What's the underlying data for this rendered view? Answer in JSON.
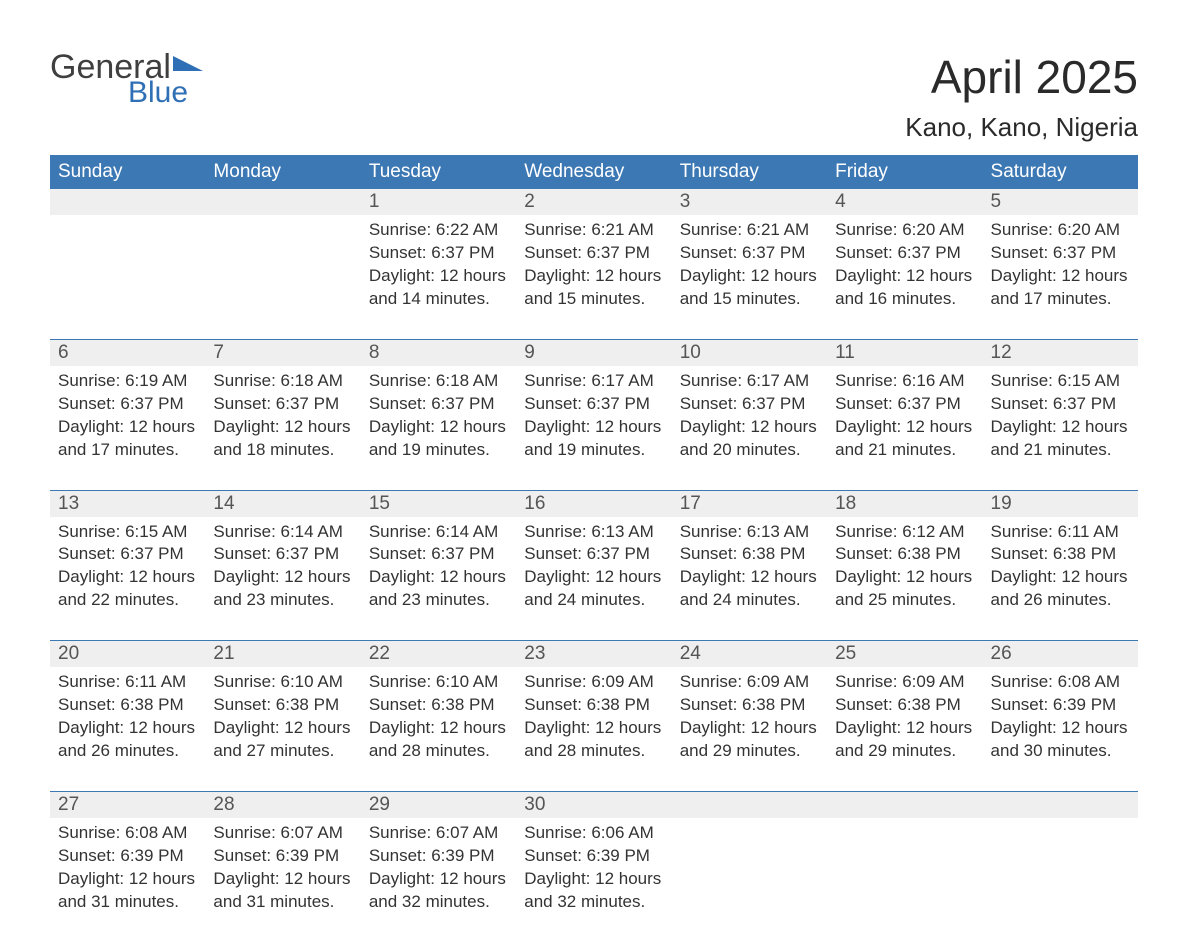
{
  "logo": {
    "word1": "General",
    "word2": "Blue"
  },
  "title": "April 2025",
  "location": "Kano, Kano, Nigeria",
  "colors": {
    "header_bg": "#3c78b4",
    "header_fg": "#ffffff",
    "daynum_bg": "#efefef",
    "week_border": "#3c78b4",
    "text": "#333333",
    "logo_gray": "#3f3f3f",
    "logo_blue": "#2f6fb5"
  },
  "day_headers": [
    "Sunday",
    "Monday",
    "Tuesday",
    "Wednesday",
    "Thursday",
    "Friday",
    "Saturday"
  ],
  "weeks": [
    [
      null,
      null,
      {
        "n": "1",
        "sr": "Sunrise: 6:22 AM",
        "ss": "Sunset: 6:37 PM",
        "d1": "Daylight: 12 hours",
        "d2": "and 14 minutes."
      },
      {
        "n": "2",
        "sr": "Sunrise: 6:21 AM",
        "ss": "Sunset: 6:37 PM",
        "d1": "Daylight: 12 hours",
        "d2": "and 15 minutes."
      },
      {
        "n": "3",
        "sr": "Sunrise: 6:21 AM",
        "ss": "Sunset: 6:37 PM",
        "d1": "Daylight: 12 hours",
        "d2": "and 15 minutes."
      },
      {
        "n": "4",
        "sr": "Sunrise: 6:20 AM",
        "ss": "Sunset: 6:37 PM",
        "d1": "Daylight: 12 hours",
        "d2": "and 16 minutes."
      },
      {
        "n": "5",
        "sr": "Sunrise: 6:20 AM",
        "ss": "Sunset: 6:37 PM",
        "d1": "Daylight: 12 hours",
        "d2": "and 17 minutes."
      }
    ],
    [
      {
        "n": "6",
        "sr": "Sunrise: 6:19 AM",
        "ss": "Sunset: 6:37 PM",
        "d1": "Daylight: 12 hours",
        "d2": "and 17 minutes."
      },
      {
        "n": "7",
        "sr": "Sunrise: 6:18 AM",
        "ss": "Sunset: 6:37 PM",
        "d1": "Daylight: 12 hours",
        "d2": "and 18 minutes."
      },
      {
        "n": "8",
        "sr": "Sunrise: 6:18 AM",
        "ss": "Sunset: 6:37 PM",
        "d1": "Daylight: 12 hours",
        "d2": "and 19 minutes."
      },
      {
        "n": "9",
        "sr": "Sunrise: 6:17 AM",
        "ss": "Sunset: 6:37 PM",
        "d1": "Daylight: 12 hours",
        "d2": "and 19 minutes."
      },
      {
        "n": "10",
        "sr": "Sunrise: 6:17 AM",
        "ss": "Sunset: 6:37 PM",
        "d1": "Daylight: 12 hours",
        "d2": "and 20 minutes."
      },
      {
        "n": "11",
        "sr": "Sunrise: 6:16 AM",
        "ss": "Sunset: 6:37 PM",
        "d1": "Daylight: 12 hours",
        "d2": "and 21 minutes."
      },
      {
        "n": "12",
        "sr": "Sunrise: 6:15 AM",
        "ss": "Sunset: 6:37 PM",
        "d1": "Daylight: 12 hours",
        "d2": "and 21 minutes."
      }
    ],
    [
      {
        "n": "13",
        "sr": "Sunrise: 6:15 AM",
        "ss": "Sunset: 6:37 PM",
        "d1": "Daylight: 12 hours",
        "d2": "and 22 minutes."
      },
      {
        "n": "14",
        "sr": "Sunrise: 6:14 AM",
        "ss": "Sunset: 6:37 PM",
        "d1": "Daylight: 12 hours",
        "d2": "and 23 minutes."
      },
      {
        "n": "15",
        "sr": "Sunrise: 6:14 AM",
        "ss": "Sunset: 6:37 PM",
        "d1": "Daylight: 12 hours",
        "d2": "and 23 minutes."
      },
      {
        "n": "16",
        "sr": "Sunrise: 6:13 AM",
        "ss": "Sunset: 6:37 PM",
        "d1": "Daylight: 12 hours",
        "d2": "and 24 minutes."
      },
      {
        "n": "17",
        "sr": "Sunrise: 6:13 AM",
        "ss": "Sunset: 6:38 PM",
        "d1": "Daylight: 12 hours",
        "d2": "and 24 minutes."
      },
      {
        "n": "18",
        "sr": "Sunrise: 6:12 AM",
        "ss": "Sunset: 6:38 PM",
        "d1": "Daylight: 12 hours",
        "d2": "and 25 minutes."
      },
      {
        "n": "19",
        "sr": "Sunrise: 6:11 AM",
        "ss": "Sunset: 6:38 PM",
        "d1": "Daylight: 12 hours",
        "d2": "and 26 minutes."
      }
    ],
    [
      {
        "n": "20",
        "sr": "Sunrise: 6:11 AM",
        "ss": "Sunset: 6:38 PM",
        "d1": "Daylight: 12 hours",
        "d2": "and 26 minutes."
      },
      {
        "n": "21",
        "sr": "Sunrise: 6:10 AM",
        "ss": "Sunset: 6:38 PM",
        "d1": "Daylight: 12 hours",
        "d2": "and 27 minutes."
      },
      {
        "n": "22",
        "sr": "Sunrise: 6:10 AM",
        "ss": "Sunset: 6:38 PM",
        "d1": "Daylight: 12 hours",
        "d2": "and 28 minutes."
      },
      {
        "n": "23",
        "sr": "Sunrise: 6:09 AM",
        "ss": "Sunset: 6:38 PM",
        "d1": "Daylight: 12 hours",
        "d2": "and 28 minutes."
      },
      {
        "n": "24",
        "sr": "Sunrise: 6:09 AM",
        "ss": "Sunset: 6:38 PM",
        "d1": "Daylight: 12 hours",
        "d2": "and 29 minutes."
      },
      {
        "n": "25",
        "sr": "Sunrise: 6:09 AM",
        "ss": "Sunset: 6:38 PM",
        "d1": "Daylight: 12 hours",
        "d2": "and 29 minutes."
      },
      {
        "n": "26",
        "sr": "Sunrise: 6:08 AM",
        "ss": "Sunset: 6:39 PM",
        "d1": "Daylight: 12 hours",
        "d2": "and 30 minutes."
      }
    ],
    [
      {
        "n": "27",
        "sr": "Sunrise: 6:08 AM",
        "ss": "Sunset: 6:39 PM",
        "d1": "Daylight: 12 hours",
        "d2": "and 31 minutes."
      },
      {
        "n": "28",
        "sr": "Sunrise: 6:07 AM",
        "ss": "Sunset: 6:39 PM",
        "d1": "Daylight: 12 hours",
        "d2": "and 31 minutes."
      },
      {
        "n": "29",
        "sr": "Sunrise: 6:07 AM",
        "ss": "Sunset: 6:39 PM",
        "d1": "Daylight: 12 hours",
        "d2": "and 32 minutes."
      },
      {
        "n": "30",
        "sr": "Sunrise: 6:06 AM",
        "ss": "Sunset: 6:39 PM",
        "d1": "Daylight: 12 hours",
        "d2": "and 32 minutes."
      },
      null,
      null,
      null
    ]
  ]
}
